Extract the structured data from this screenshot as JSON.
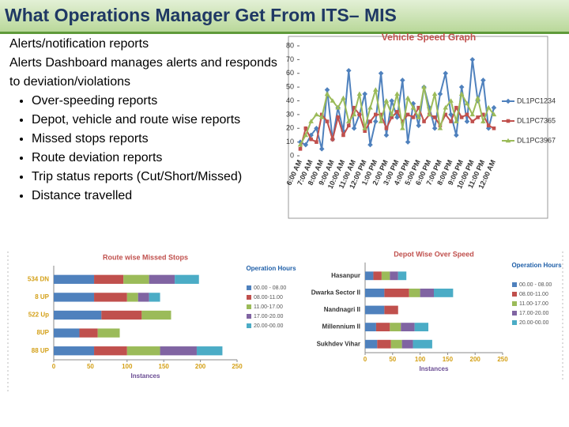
{
  "title": "What Operations Manager Get From ITS– MIS",
  "text": {
    "heading": "Alerts/notification reports",
    "intro": "Alerts Dashboard manages alerts and responds to deviation/violations",
    "bullets": [
      "Over-speeding reports",
      "Depot, vehicle and route wise reports",
      "Missed stops reports",
      "Route deviation reports",
      "Trip status reports (Cut/Short/Missed)",
      "Distance travelled"
    ]
  },
  "chart_data": [
    {
      "type": "line",
      "title": "Vehicle Speed Graph",
      "categories": [
        "6:00 AM",
        null,
        "7:00 AM",
        null,
        "8:00 AM",
        null,
        "9:00 AM",
        null,
        "10:00 AM",
        null,
        "11:00 AM",
        null,
        "12:00 PM",
        null,
        "1:00 PM",
        null,
        "2:00 PM",
        null,
        "3:00 PM",
        null,
        "4:00 PM",
        null,
        "5:00 PM",
        null,
        "6:00 PM",
        null,
        "7:00 PM",
        null,
        "8:00 PM",
        null,
        "9:00 PM",
        null,
        "10:00 PM",
        null,
        "11:00 PM",
        null,
        "12:00 AM"
      ],
      "ylim": [
        0,
        80
      ],
      "yticks": [
        0,
        10,
        20,
        30,
        40,
        50,
        60,
        70,
        80
      ],
      "legend": "right",
      "series": [
        {
          "name": "DL1PC1234",
          "color": "#4f81bd",
          "marker": "diamond",
          "values": [
            10,
            8,
            15,
            20,
            5,
            48,
            12,
            35,
            18,
            62,
            20,
            30,
            45,
            8,
            25,
            60,
            15,
            40,
            28,
            55,
            10,
            38,
            22,
            50,
            35,
            20,
            45,
            60,
            30,
            15,
            50,
            25,
            70,
            40,
            55,
            20,
            35
          ]
        },
        {
          "name": "DL1PC7365",
          "color": "#c0504d",
          "marker": "square",
          "values": [
            5,
            20,
            12,
            10,
            30,
            25,
            12,
            28,
            15,
            22,
            35,
            30,
            18,
            25,
            30,
            30,
            20,
            28,
            32,
            25,
            30,
            28,
            35,
            25,
            30,
            28,
            22,
            30,
            25,
            35,
            28,
            30,
            25,
            28,
            30,
            22,
            20
          ]
        },
        {
          "name": "DL1PC3967",
          "color": "#9bbb59",
          "marker": "triangle",
          "values": [
            8,
            15,
            25,
            30,
            28,
            45,
            40,
            35,
            42,
            25,
            30,
            45,
            20,
            35,
            48,
            25,
            40,
            30,
            45,
            20,
            42,
            35,
            28,
            50,
            30,
            45,
            20,
            35,
            40,
            25,
            45,
            38,
            30,
            42,
            25,
            35,
            30
          ]
        }
      ]
    },
    {
      "type": "bar",
      "orientation": "horizontal",
      "stacked": true,
      "title": "Route wise Missed Stops",
      "x_label": "Instances",
      "legend_title": "Operation Hours",
      "legend": "right",
      "categories": [
        "534 DN",
        "8 UP",
        "522 Up",
        "8UP",
        "88 UP"
      ],
      "xlim": [
        0,
        250
      ],
      "xticks": [
        0,
        50,
        100,
        150,
        200,
        250
      ],
      "series": [
        {
          "name": "00.00 - 08.00",
          "color": "#4f81bd",
          "values": [
            55,
            55,
            65,
            35,
            55
          ]
        },
        {
          "name": "08.00-11.00",
          "color": "#c0504d",
          "values": [
            40,
            45,
            55,
            25,
            45
          ]
        },
        {
          "name": "11.00-17.00",
          "color": "#9bbb59",
          "values": [
            35,
            15,
            40,
            30,
            45
          ]
        },
        {
          "name": "17.00-20.00",
          "color": "#8064a2",
          "values": [
            35,
            15,
            0,
            0,
            50
          ]
        },
        {
          "name": "20.00-00.00",
          "color": "#4bacc6",
          "values": [
            33,
            15,
            0,
            0,
            35
          ]
        }
      ]
    },
    {
      "type": "bar",
      "orientation": "horizontal",
      "stacked": true,
      "title": "Depot Wise Over Speed",
      "x_label": "Instances",
      "legend_title": "Operation Hours",
      "legend": "right",
      "categories": [
        "Hasanpur",
        "Dwarka Sector II",
        "Nandnagri II",
        "Millennium II",
        "Sukhdev Vihar"
      ],
      "xlim": [
        0,
        250
      ],
      "xticks": [
        0,
        50,
        100,
        150,
        200,
        250
      ],
      "series": [
        {
          "name": "00.00 - 08.00",
          "color": "#4f81bd",
          "values": [
            15,
            35,
            35,
            20,
            22
          ]
        },
        {
          "name": "08.00-11.00",
          "color": "#c0504d",
          "values": [
            15,
            45,
            25,
            25,
            25
          ]
        },
        {
          "name": "11.00-17.00",
          "color": "#9bbb59",
          "values": [
            15,
            20,
            0,
            20,
            20
          ]
        },
        {
          "name": "17.00-20.00",
          "color": "#8064a2",
          "values": [
            15,
            25,
            0,
            25,
            20
          ]
        },
        {
          "name": "20.00-00.00",
          "color": "#4bacc6",
          "values": [
            15,
            35,
            0,
            25,
            35
          ]
        }
      ]
    }
  ]
}
